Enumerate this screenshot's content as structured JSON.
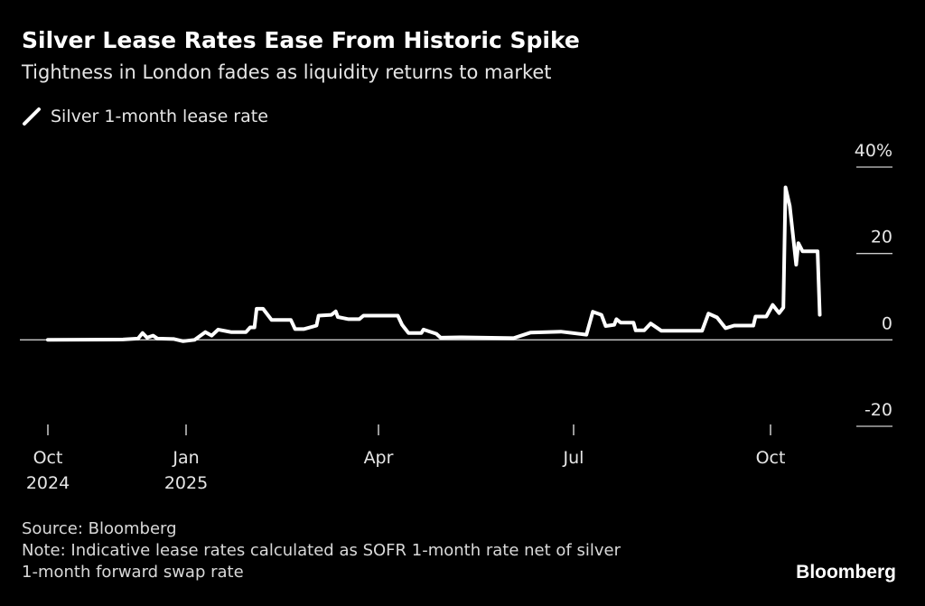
{
  "title": "Silver Lease Rates Ease From Historic Spike",
  "subtitle": "Tightness in London fades as liquidity returns to market",
  "source": "Source: Bloomberg",
  "note_line1": "Note: Indicative lease rates calculated as SOFR 1-month rate net of silver",
  "note_line2": "1-month forward swap rate",
  "logo": "Bloomberg",
  "chart_data": {
    "type": "line",
    "title": "Silver Lease Rates Ease From Historic Spike",
    "legend_position": "top-left",
    "grid": "horizontal",
    "y_axis_position": "right",
    "ylim": [
      -20,
      40
    ],
    "y_ticks": [
      {
        "value": 40,
        "label": "40%"
      },
      {
        "value": 20,
        "label": "20"
      },
      {
        "value": 0,
        "label": "0"
      },
      {
        "value": -20,
        "label": "-20"
      }
    ],
    "x_ticks": [
      {
        "date": "2024-10-01",
        "label": "Oct",
        "label2": "2024"
      },
      {
        "date": "2025-01-01",
        "label": "Jan",
        "label2": "2025"
      },
      {
        "date": "2025-04-01",
        "label": "Apr",
        "label2": ""
      },
      {
        "date": "2025-07-01",
        "label": "Jul",
        "label2": ""
      },
      {
        "date": "2025-10-01",
        "label": "Oct",
        "label2": ""
      }
    ],
    "series": [
      {
        "name": "Silver 1-month lease rate",
        "color": "#ffffff",
        "points": [
          [
            "2024-10-01",
            0
          ],
          [
            "2024-11-20",
            0.1
          ],
          [
            "2024-11-30",
            0.3
          ],
          [
            "2024-12-03",
            1.6
          ],
          [
            "2024-12-06",
            0.5
          ],
          [
            "2024-12-10",
            1.0
          ],
          [
            "2024-12-13",
            0.3
          ],
          [
            "2024-12-24",
            0.2
          ],
          [
            "2024-12-30",
            -0.3
          ],
          [
            "2025-01-05",
            0
          ],
          [
            "2025-01-10",
            1.8
          ],
          [
            "2025-01-13",
            1.0
          ],
          [
            "2025-01-16",
            2.4
          ],
          [
            "2025-01-22",
            1.8
          ],
          [
            "2025-01-29",
            1.8
          ],
          [
            "2025-01-31",
            2.9
          ],
          [
            "2025-02-02",
            2.9
          ],
          [
            "2025-02-03",
            7.2
          ],
          [
            "2025-02-06",
            7.2
          ],
          [
            "2025-02-10",
            4.6
          ],
          [
            "2025-02-19",
            4.6
          ],
          [
            "2025-02-21",
            2.5
          ],
          [
            "2025-02-25",
            2.5
          ],
          [
            "2025-03-03",
            3.3
          ],
          [
            "2025-03-04",
            5.6
          ],
          [
            "2025-03-10",
            5.8
          ],
          [
            "2025-03-12",
            6.6
          ],
          [
            "2025-03-13",
            5.3
          ],
          [
            "2025-03-18",
            4.8
          ],
          [
            "2025-03-23",
            4.8
          ],
          [
            "2025-03-25",
            5.6
          ],
          [
            "2025-04-10",
            5.6
          ],
          [
            "2025-04-12",
            3.5
          ],
          [
            "2025-04-15",
            1.6
          ],
          [
            "2025-04-21",
            1.6
          ],
          [
            "2025-04-22",
            2.4
          ],
          [
            "2025-04-28",
            1.4
          ],
          [
            "2025-04-30",
            0.5
          ],
          [
            "2025-05-10",
            0.6
          ],
          [
            "2025-06-03",
            0.4
          ],
          [
            "2025-06-11",
            1.7
          ],
          [
            "2025-06-25",
            1.9
          ],
          [
            "2025-07-02",
            1.5
          ],
          [
            "2025-07-07",
            1.2
          ],
          [
            "2025-07-10",
            6.5
          ],
          [
            "2025-07-14",
            5.8
          ],
          [
            "2025-07-16",
            3.2
          ],
          [
            "2025-07-20",
            3.5
          ],
          [
            "2025-07-21",
            4.8
          ],
          [
            "2025-07-23",
            4.0
          ],
          [
            "2025-07-29",
            4.0
          ],
          [
            "2025-07-30",
            2.2
          ],
          [
            "2025-08-03",
            2.2
          ],
          [
            "2025-08-06",
            3.8
          ],
          [
            "2025-08-11",
            2.1
          ],
          [
            "2025-08-30",
            2.1
          ],
          [
            "2025-09-02",
            6.1
          ],
          [
            "2025-09-06",
            5.2
          ],
          [
            "2025-09-10",
            2.7
          ],
          [
            "2025-09-14",
            3.3
          ],
          [
            "2025-09-23",
            3.3
          ],
          [
            "2025-09-24",
            5.4
          ],
          [
            "2025-09-29",
            5.4
          ],
          [
            "2025-10-02",
            8.1
          ],
          [
            "2025-10-05",
            6.2
          ],
          [
            "2025-10-07",
            7.5
          ],
          [
            "2025-10-08",
            35.3
          ],
          [
            "2025-10-10",
            31
          ],
          [
            "2025-10-13",
            17.4
          ],
          [
            "2025-10-14",
            22.4
          ],
          [
            "2025-10-16",
            20.5
          ],
          [
            "2025-10-23",
            20.5
          ],
          [
            "2025-10-24",
            5.8
          ]
        ]
      }
    ]
  }
}
